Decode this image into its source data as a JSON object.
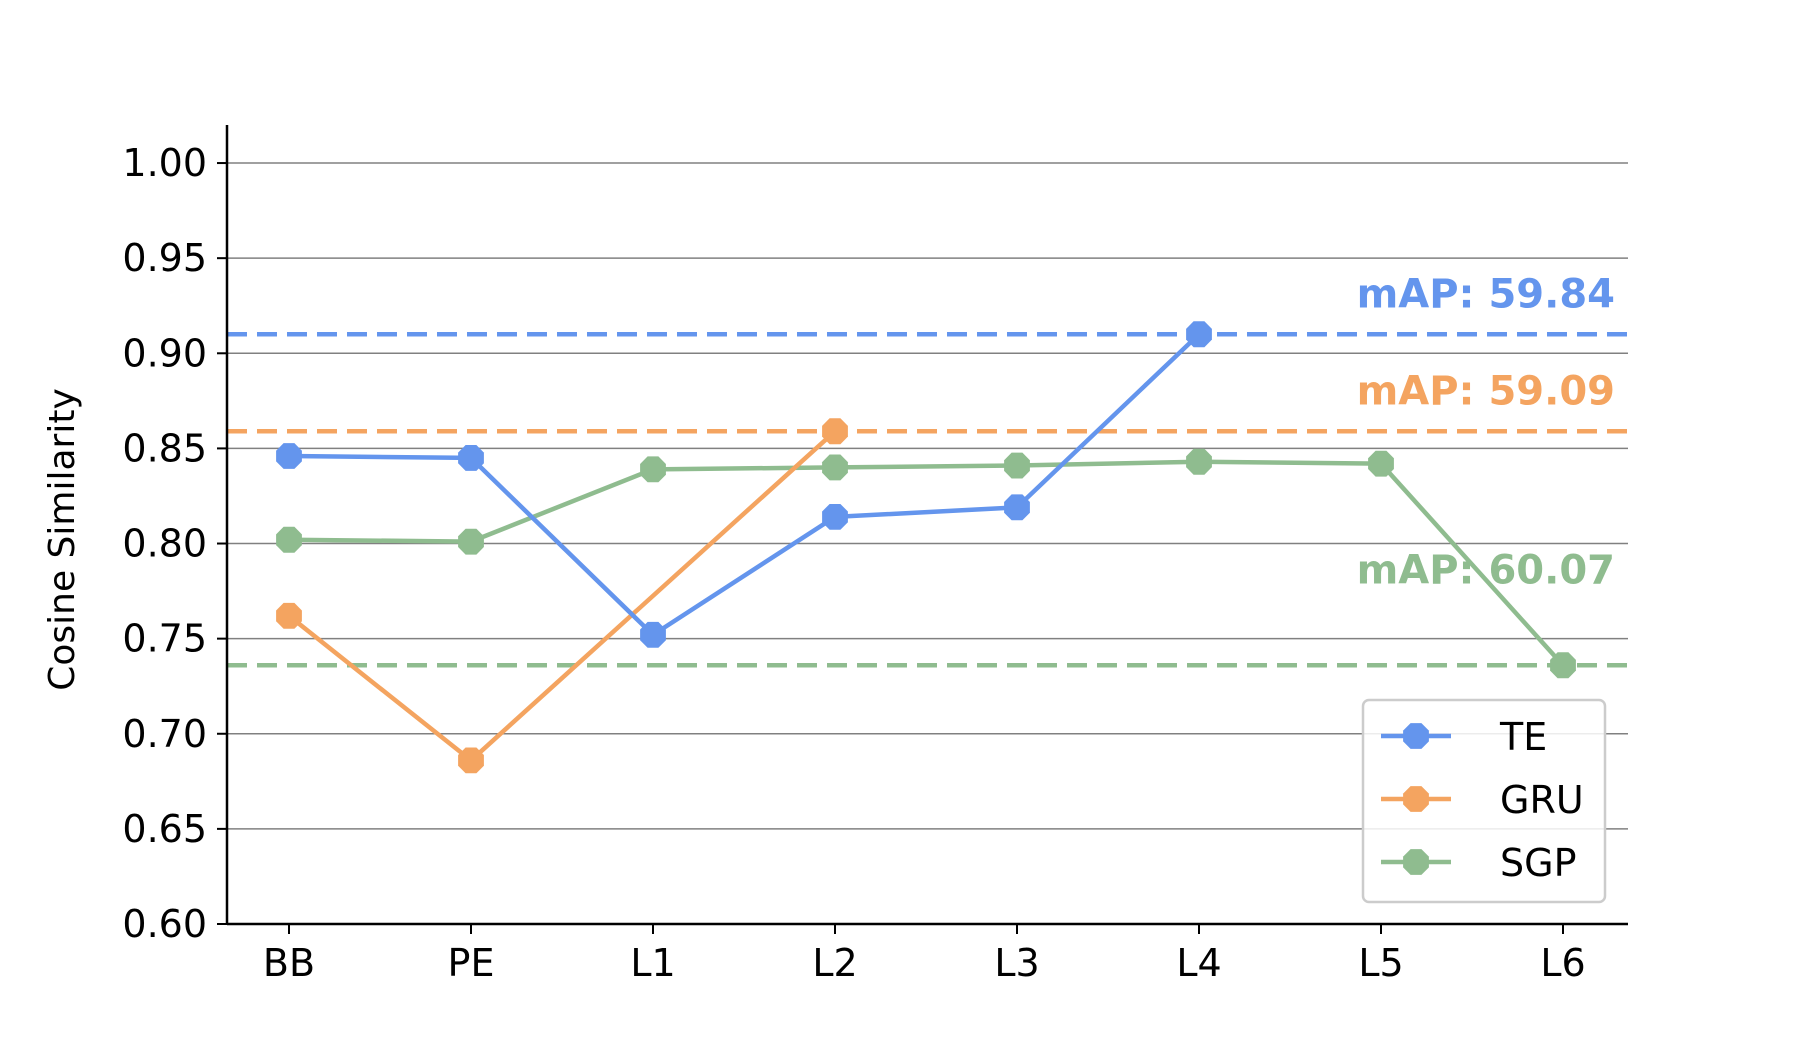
{
  "chart_data": {
    "type": "line",
    "title": "",
    "xlabel": "",
    "ylabel": "Cosine Similarity",
    "categories": [
      "BB",
      "PE",
      "L1",
      "L2",
      "L3",
      "L4",
      "L5",
      "L6"
    ],
    "ylim": [
      0.6,
      1.02
    ],
    "yticks": [
      0.6,
      0.65,
      0.7,
      0.75,
      0.8,
      0.85,
      0.9,
      0.95,
      1.0
    ],
    "ytick_labels": [
      "0.60",
      "0.65",
      "0.70",
      "0.75",
      "0.80",
      "0.85",
      "0.90",
      "0.95",
      "1.00"
    ],
    "grid": "horizontal",
    "legend_position": "bottom-right",
    "series": [
      {
        "name": "TE",
        "color": "#6495ED",
        "values": [
          0.846,
          0.845,
          0.752,
          0.814,
          0.819,
          0.91,
          null,
          null
        ]
      },
      {
        "name": "GRU",
        "color": "#F4A460",
        "values": [
          0.762,
          0.686,
          null,
          0.859,
          null,
          null,
          null,
          null
        ]
      },
      {
        "name": "SGP",
        "color": "#8FBC8F",
        "values": [
          0.802,
          0.801,
          0.839,
          0.84,
          0.841,
          0.843,
          0.842,
          0.736
        ]
      }
    ],
    "reference_lines": [
      {
        "series": "TE",
        "y": 0.91,
        "label": "mAP: 59.84"
      },
      {
        "series": "GRU",
        "y": 0.859,
        "label": "mAP: 59.09"
      },
      {
        "series": "SGP",
        "y": 0.736,
        "label": "mAP: 60.07"
      }
    ]
  }
}
